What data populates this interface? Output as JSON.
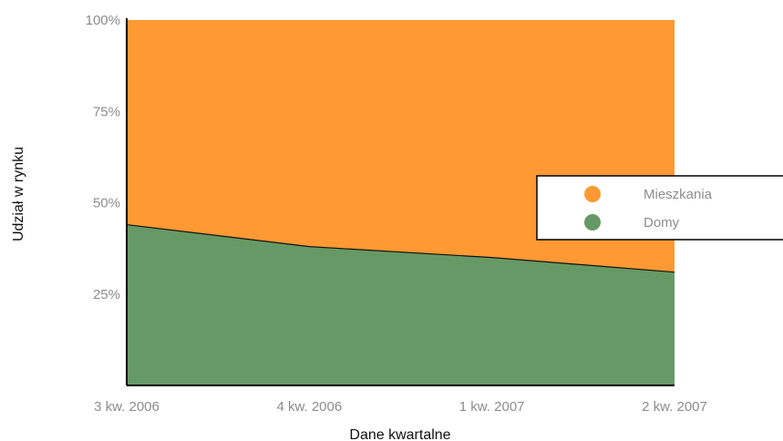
{
  "chart_data": {
    "type": "area",
    "stacked": "percent",
    "categories": [
      "3 kw. 2006",
      "4 kw. 2006",
      "1 kw. 2007",
      "2 kw. 2007"
    ],
    "series": [
      {
        "name": "Domy",
        "values": [
          44,
          38,
          35,
          31
        ],
        "color": "#669966"
      },
      {
        "name": "Mieszkania",
        "values": [
          56,
          62,
          65,
          69
        ],
        "color": "#ff9933"
      }
    ],
    "yticks": [
      "25%",
      "50%",
      "75%",
      "100%"
    ],
    "ytick_values": [
      25,
      50,
      75,
      100
    ],
    "ylim": [
      0,
      100
    ],
    "xlabel": "Dane kwartalne",
    "ylabel": "Udział w rynku",
    "grid": false,
    "legend": {
      "position": "right",
      "items": [
        "Mieszkania",
        "Domy"
      ]
    }
  }
}
